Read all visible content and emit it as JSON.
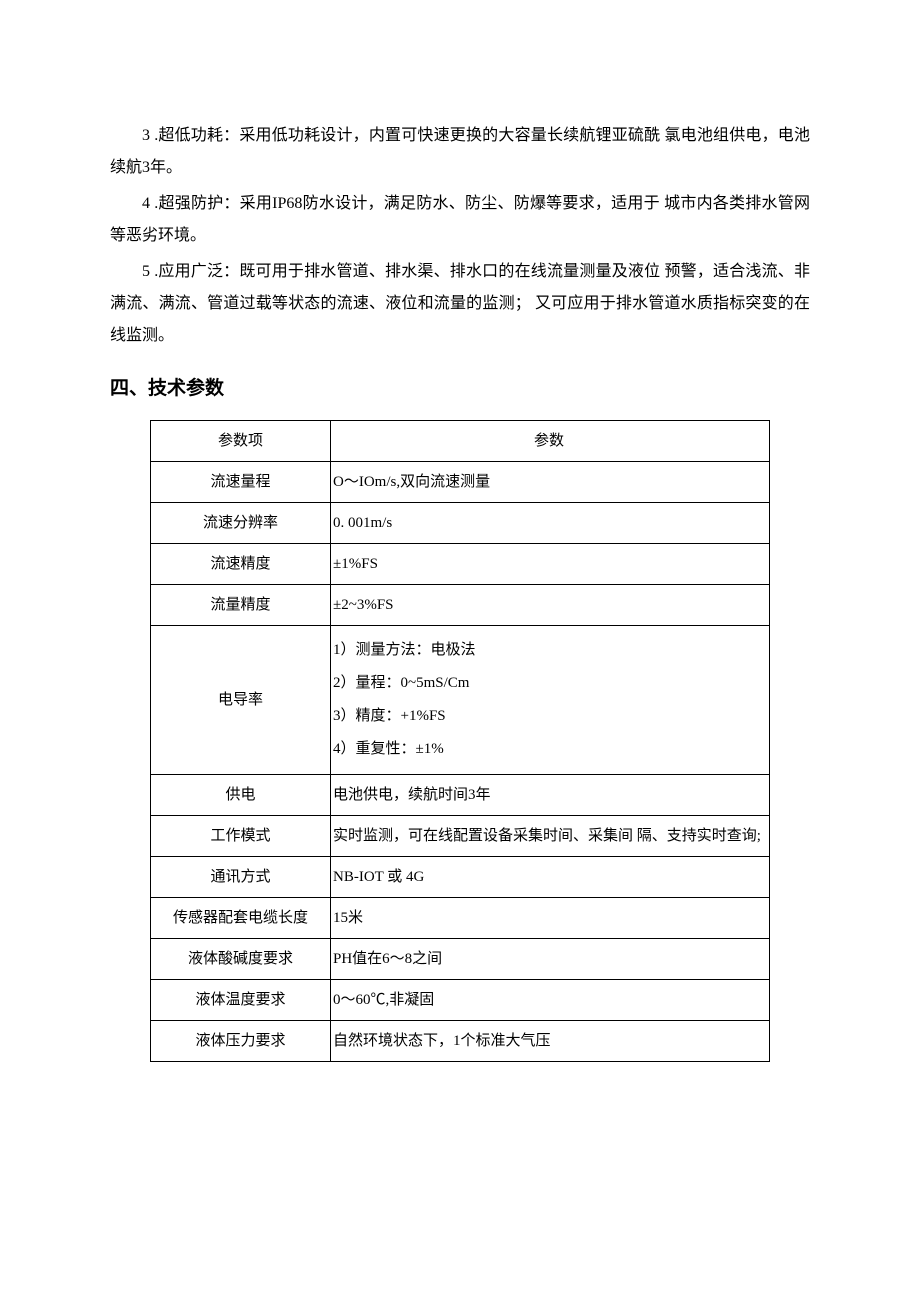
{
  "paragraphs": {
    "p3": "3 .超低功耗：采用低功耗设计，内置可快速更换的大容量长续航锂亚硫酰 氯电池组供电，电池续航3年。",
    "p4": "4 .超强防护：采用IP68防水设计，满足防水、防尘、防爆等要求，适用于 城市内各类排水管网等恶劣环境。",
    "p5": "5 .应用广泛：既可用于排水管道、排水渠、排水口的在线流量测量及液位 预警，适合浅流、非满流、满流、管道过载等状态的流速、液位和流量的监测； 又可应用于排水管道水质指标突变的在线监测。"
  },
  "section_heading": "四、技术参数",
  "table": {
    "header_col1": "参数项",
    "header_col2": "参数",
    "rows": {
      "r1c1": "流速量程",
      "r1c2": "O～IOm/s,双向流速测量",
      "r2c1": "流速分辨率",
      "r2c2": "0. 001m/s",
      "r3c1": "流速精度",
      "r3c2": "±1%FS",
      "r4c1": "流量精度",
      "r4c2": "±2~3%FS",
      "r5c1": "电导率",
      "r5c2": "1）测量方法：电极法\n2）量程：0~5mS/Cm\n3）精度：+1%FS\n4）重复性：±1%",
      "r6c1": "供电",
      "r6c2": "电池供电，续航时间3年",
      "r7c1": "工作模式",
      "r7c2": "实时监测，可在线配置设备采集时间、采集间 隔、支持实时查询;",
      "r8c1": "通讯方式",
      "r8c2": "NB-IOT 或  4G",
      "r9c1": "传感器配套电缆长度",
      "r9c2": "15米",
      "r10c1": "液体酸碱度要求",
      "r10c2": "PH值在6～8之间",
      "r11c1": "液体温度要求",
      "r11c2": "0～60℃,非凝固",
      "r12c1": "液体压力要求",
      "r12c2": "自然环境状态下，1个标准大气压"
    }
  }
}
